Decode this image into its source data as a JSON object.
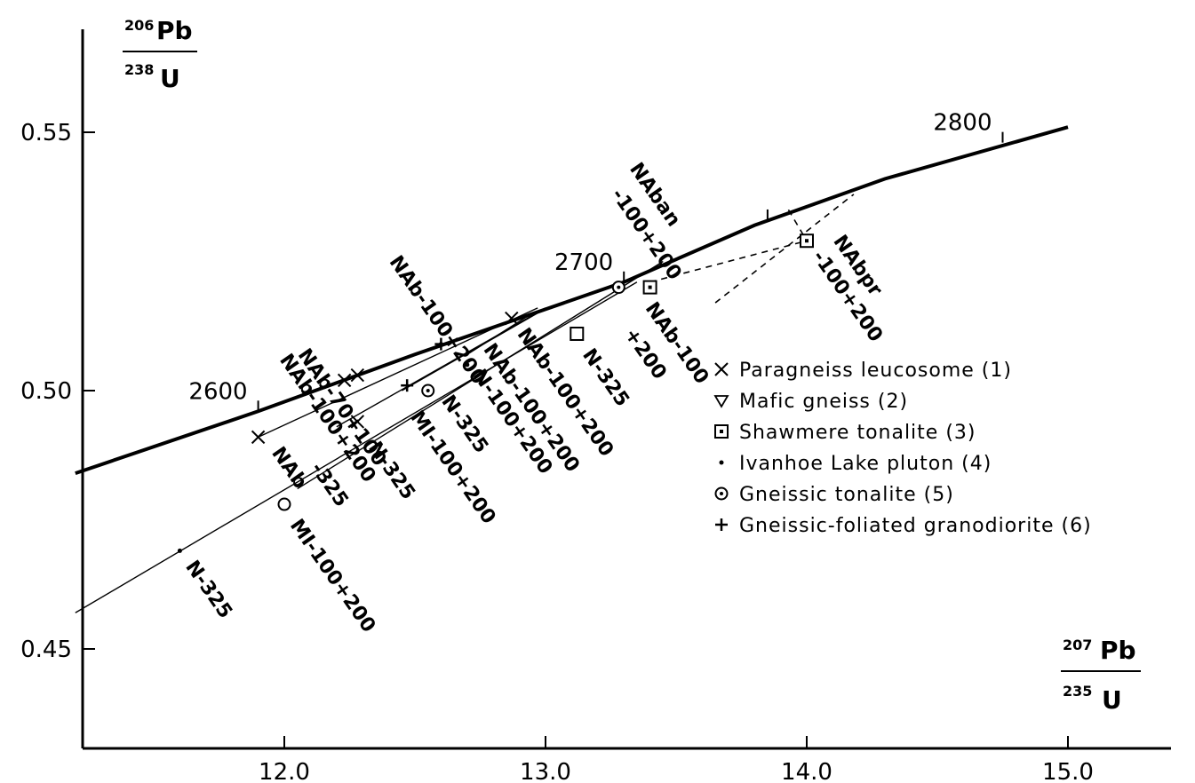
{
  "chart_data": {
    "type": "scatter",
    "xlim": [
      11.2,
      15.5
    ],
    "ylim": [
      0.43,
      0.575
    ],
    "x_ticks": [
      12.0,
      13.0,
      14.0,
      15.0
    ],
    "x_tick_labels": [
      "12.0",
      "13.0",
      "14.0",
      "15.0"
    ],
    "y_ticks": [
      0.45,
      0.5,
      0.55
    ],
    "y_tick_labels": [
      "0.45",
      "0.50",
      "0.55"
    ],
    "grid": false,
    "legend_placement": "right",
    "y_axis_label": {
      "num_sup": "206",
      "num_el": "Pb",
      "den_sup": "238",
      "den_el": "U"
    },
    "x_axis_label": {
      "num_sup": "207",
      "num_el": "Pb",
      "den_sup": "235",
      "den_el": "U"
    },
    "concordia": {
      "points": [
        [
          11.2,
          0.484
        ],
        [
          11.9,
          0.496
        ],
        [
          12.5,
          0.507
        ],
        [
          12.9,
          0.514
        ],
        [
          13.3,
          0.521
        ],
        [
          13.8,
          0.532
        ],
        [
          14.3,
          0.541
        ],
        [
          15.0,
          0.551
        ]
      ],
      "age_ticks": [
        {
          "label": "2600",
          "x": 11.9,
          "y": 0.496
        },
        {
          "label": "2700",
          "x": 13.3,
          "y": 0.521
        },
        {
          "label": "",
          "x": 13.85,
          "y": 0.533
        },
        {
          "label": "2800",
          "x": 14.75,
          "y": 0.548
        }
      ]
    },
    "discordia_lines": [
      {
        "style": "solid",
        "points": [
          [
            11.2,
            0.457
          ],
          [
            13.35,
            0.521
          ]
        ]
      },
      {
        "style": "solid",
        "points": [
          [
            12.05,
            0.481
          ],
          [
            13.45,
            0.525
          ]
        ]
      },
      {
        "style": "solid",
        "points": [
          [
            11.9,
            0.491
          ],
          [
            12.97,
            0.516
          ]
        ]
      },
      {
        "style": "solid",
        "points": [
          [
            12.2,
            0.493
          ],
          [
            13.0,
            0.516
          ]
        ]
      },
      {
        "style": "solid",
        "points": [
          [
            12.45,
            0.5
          ],
          [
            12.97,
            0.515
          ]
        ]
      },
      {
        "style": "solid",
        "points": [
          [
            12.7,
            0.507
          ],
          [
            12.95,
            0.515
          ]
        ]
      },
      {
        "style": "dashed",
        "points": [
          [
            13.4,
            0.521
          ],
          [
            14.0,
            0.529
          ]
        ]
      },
      {
        "style": "dashed",
        "points": [
          [
            13.65,
            0.517
          ],
          [
            14.18,
            0.538
          ]
        ]
      },
      {
        "style": "dashed",
        "points": [
          [
            13.93,
            0.535
          ],
          [
            14.0,
            0.529
          ]
        ]
      }
    ],
    "points": [
      {
        "x": 11.9,
        "y": 0.491,
        "marker": "x"
      },
      {
        "x": 12.23,
        "y": 0.502,
        "marker": "x"
      },
      {
        "x": 12.28,
        "y": 0.503,
        "marker": "x"
      },
      {
        "x": 12.28,
        "y": 0.494,
        "marker": "x"
      },
      {
        "x": 12.87,
        "y": 0.514,
        "marker": "x"
      },
      {
        "x": 12.6,
        "y": 0.509,
        "marker": "dot"
      },
      {
        "x": 12.7,
        "y": 0.505,
        "marker": "dot"
      },
      {
        "x": 11.6,
        "y": 0.469,
        "marker": "dot"
      },
      {
        "x": 12.47,
        "y": 0.501,
        "marker": "plus"
      },
      {
        "x": 12.6,
        "y": 0.509,
        "marker": "plus"
      },
      {
        "x": 12.0,
        "y": 0.478,
        "marker": "circle"
      },
      {
        "x": 12.55,
        "y": 0.5,
        "marker": "circle-dot"
      },
      {
        "x": 13.28,
        "y": 0.52,
        "marker": "circle-dot"
      },
      {
        "x": 13.12,
        "y": 0.511,
        "marker": "square"
      },
      {
        "x": 13.4,
        "y": 0.52,
        "marker": "square-dot"
      },
      {
        "x": 14.0,
        "y": 0.529,
        "marker": "square-dot"
      }
    ],
    "point_labels": [
      {
        "text": "NAb-70+100",
        "x": 12.05,
        "y": 0.507,
        "angle": 55
      },
      {
        "text": "NAb-100+200",
        "x": 11.98,
        "y": 0.506,
        "angle": 55
      },
      {
        "text": "NAb-100+200",
        "x": 12.4,
        "y": 0.525,
        "angle": 55
      },
      {
        "text": "NAb",
        "x": 11.95,
        "y": 0.488,
        "angle": 55
      },
      {
        "text": "-325",
        "x": 12.1,
        "y": 0.485,
        "angle": 55
      },
      {
        "text": "N-325",
        "x": 11.62,
        "y": 0.466,
        "angle": 55
      },
      {
        "text": "MI-100+200",
        "x": 12.02,
        "y": 0.474,
        "angle": 55
      },
      {
        "text": "N-325",
        "x": 12.32,
        "y": 0.489,
        "angle": 55
      },
      {
        "text": "MI-100+200",
        "x": 12.48,
        "y": 0.495,
        "angle": 55
      },
      {
        "text": "N-325",
        "x": 12.6,
        "y": 0.498,
        "angle": 55
      },
      {
        "text": "N-100+200",
        "x": 12.72,
        "y": 0.503,
        "angle": 55
      },
      {
        "text": "NAb-100+200",
        "x": 12.76,
        "y": 0.508,
        "angle": 55
      },
      {
        "text": "NAb-100+200",
        "x": 12.89,
        "y": 0.511,
        "angle": 55
      },
      {
        "text": "N-325",
        "x": 13.14,
        "y": 0.507,
        "angle": 55
      },
      {
        "text": "NAb-100",
        "x": 13.38,
        "y": 0.516,
        "angle": 55
      },
      {
        "text": "+200",
        "x": 13.3,
        "y": 0.511,
        "angle": 55
      },
      {
        "text": "NAban",
        "x": 13.32,
        "y": 0.543,
        "angle": 55
      },
      {
        "text": "-100+200",
        "x": 13.25,
        "y": 0.538,
        "angle": 55
      },
      {
        "text": "NAbpr",
        "x": 14.1,
        "y": 0.529,
        "angle": 55
      },
      {
        "text": "-100+200",
        "x": 14.02,
        "y": 0.526,
        "angle": 55
      }
    ],
    "legend": [
      {
        "marker": "x",
        "label": "Paragneiss leucosome (1)"
      },
      {
        "marker": "triangle",
        "label": "Mafic gneiss (2)"
      },
      {
        "marker": "square-dot",
        "label": "Shawmere tonalite (3)"
      },
      {
        "marker": "dot",
        "label": "Ivanhoe Lake pluton (4)"
      },
      {
        "marker": "circle-dot",
        "label": "Gneissic tonalite (5)"
      },
      {
        "marker": "plus",
        "label": "Gneissic-foliated granodiorite (6)"
      }
    ]
  }
}
